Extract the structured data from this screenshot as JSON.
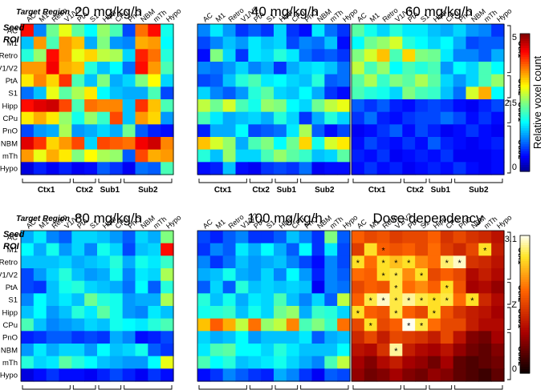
{
  "region_labels": [
    "AC",
    "M1",
    "Retro",
    "V1/V2",
    "PtA",
    "S1",
    "Hipp",
    "CPu",
    "PnO",
    "NBM",
    "mTh",
    "Hypo"
  ],
  "group_labels": [
    "Ctx1",
    "Ctx2",
    "Sub1",
    "Sub2"
  ],
  "target_label": "Target Region",
  "seed_label_1": "Seed",
  "seed_label_2": "ROI",
  "colorbar_top": {
    "ticks": [
      "5",
      "2.5",
      "0"
    ],
    "label": "Relative voxel count"
  },
  "colorbar_bottom": {
    "ticks": [
      "3.1",
      "Z",
      "0"
    ]
  },
  "chart_data": [
    {
      "type": "heatmap",
      "title": "20 mg/kg/h",
      "x": [
        "AC",
        "M1",
        "Retro",
        "V1/V2",
        "PtA",
        "S1",
        "Hipp",
        "CPu",
        "PnO",
        "NBM",
        "mTh",
        "Hypo"
      ],
      "y": [
        "AC",
        "M1",
        "Retro",
        "V1/V2",
        "PtA",
        "S1",
        "Hipp",
        "CPu",
        "PnO",
        "NBM",
        "mTh",
        "Hypo"
      ],
      "zlim": [
        0,
        5
      ],
      "values": [
        [
          4.3,
          1.2,
          2.4,
          3.0,
          2.3,
          1.8,
          2.6,
          2.2,
          0.9,
          3.8,
          4.3,
          1.9
        ],
        [
          1.5,
          3.6,
          2.2,
          3.6,
          3.4,
          1.4,
          2.5,
          1.3,
          1.2,
          3.5,
          3.6,
          1.8
        ],
        [
          2.0,
          2.6,
          4.3,
          3.6,
          3.0,
          3.3,
          2.8,
          2.7,
          1.6,
          4.2,
          3.8,
          2.0
        ],
        [
          3.6,
          3.6,
          4.4,
          3.5,
          3.4,
          2.0,
          1.5,
          1.8,
          1.1,
          4.3,
          3.6,
          2.2
        ],
        [
          3.2,
          3.7,
          3.3,
          4.1,
          2.2,
          1.5,
          2.5,
          1.4,
          1.6,
          2.5,
          3.1,
          1.6
        ],
        [
          1.1,
          1.5,
          3.0,
          2.3,
          2.7,
          3.2,
          1.8,
          1.5,
          1.4,
          1.4,
          2.2,
          0.9
        ],
        [
          4.3,
          4.5,
          4.6,
          4.0,
          2.2,
          3.8,
          3.7,
          3.7,
          1.5,
          4.1,
          3.4,
          2.2
        ],
        [
          3.2,
          3.5,
          3.2,
          2.6,
          1.9,
          2.6,
          2.1,
          4.0,
          1.5,
          3.6,
          3.3,
          1.3
        ],
        [
          0.9,
          1.3,
          1.4,
          2.7,
          1.3,
          1.4,
          1.6,
          1.4,
          2.4,
          1.0,
          0.7,
          0.6
        ],
        [
          4.5,
          4.1,
          3.3,
          3.6,
          4.0,
          1.6,
          4.0,
          3.9,
          3.8,
          4.4,
          4.6,
          3.7
        ],
        [
          3.6,
          3.0,
          3.5,
          3.2,
          2.5,
          3.1,
          2.7,
          2.6,
          1.0,
          4.0,
          3.5,
          3.6
        ],
        [
          0.4,
          0.7,
          0.5,
          0.7,
          0.5,
          0.6,
          1.0,
          0.8,
          0.5,
          1.1,
          1.0,
          2.2
        ]
      ]
    },
    {
      "type": "heatmap",
      "title": "40 mg/kg/h",
      "x": [
        "AC",
        "M1",
        "Retro",
        "V1/V2",
        "PtA",
        "S1",
        "Hipp",
        "CPu",
        "PnO",
        "NBM",
        "mTh",
        "Hypo"
      ],
      "y": [
        "AC",
        "M1",
        "Retro",
        "V1/V2",
        "PtA",
        "S1",
        "Hipp",
        "CPu",
        "PnO",
        "NBM",
        "mTh",
        "Hypo"
      ],
      "zlim": [
        0,
        5
      ],
      "values": [
        [
          1.2,
          1.7,
          1.3,
          0.8,
          1.0,
          0.8,
          1.6,
          0.8,
          0.6,
          1.7,
          1.1,
          0.8
        ],
        [
          0.9,
          1.2,
          1.5,
          1.3,
          1.7,
          1.5,
          1.6,
          0.9,
          1.2,
          1.1,
          1.5,
          0.6
        ],
        [
          0.6,
          2.5,
          1.6,
          0.8,
          1.7,
          1.6,
          2.0,
          1.7,
          1.1,
          0.9,
          1.0,
          0.8
        ],
        [
          1.2,
          1.1,
          1.3,
          1.6,
          1.2,
          1.4,
          0.8,
          1.4,
          1.6,
          1.7,
          1.5,
          1.1
        ],
        [
          0.9,
          1.0,
          1.5,
          2.0,
          2.2,
          1.7,
          1.8,
          1.6,
          1.5,
          2.0,
          1.0,
          1.1
        ],
        [
          1.6,
          1.2,
          1.0,
          1.3,
          2.0,
          2.3,
          1.6,
          1.5,
          1.8,
          1.4,
          0.8,
          0.6
        ],
        [
          2.8,
          2.4,
          2.9,
          2.2,
          1.9,
          2.6,
          2.5,
          1.8,
          1.6,
          2.4,
          2.8,
          3.0
        ],
        [
          2.2,
          1.7,
          1.4,
          1.5,
          1.6,
          1.4,
          2.0,
          1.6,
          0.8,
          1.4,
          2.0,
          1.6
        ],
        [
          0.7,
          1.4,
          1.4,
          1.8,
          0.9,
          1.0,
          1.1,
          1.7,
          2.7,
          1.0,
          0.6,
          0.9
        ],
        [
          3.4,
          2.9,
          2.6,
          1.4,
          2.2,
          2.5,
          1.8,
          2.4,
          3.3,
          1.9,
          2.9,
          3.2
        ],
        [
          2.0,
          1.5,
          2.6,
          1.6,
          1.6,
          2.2,
          2.6,
          2.3,
          2.1,
          1.5,
          1.6,
          2.3
        ],
        [
          0.6,
          0.7,
          1.5,
          0.6,
          0.5,
          0.8,
          0.9,
          0.8,
          1.1,
          0.5,
          0.6,
          0.6
        ]
      ]
    },
    {
      "type": "heatmap",
      "title": "60 mg/kg/h",
      "x": [
        "AC",
        "M1",
        "Retro",
        "V1/V2",
        "PtA",
        "S1",
        "Hipp",
        "CPu",
        "PnO",
        "NBM",
        "mTh",
        "Hypo"
      ],
      "y": [
        "AC",
        "M1",
        "Retro",
        "V1/V2",
        "PtA",
        "S1",
        "Hipp",
        "CPu",
        "PnO",
        "NBM",
        "mTh",
        "Hypo"
      ],
      "zlim": [
        0,
        5
      ],
      "values": [
        [
          2.3,
          1.9,
          1.6,
          2.0,
          1.7,
          1.7,
          1.5,
          1.4,
          1.6,
          1.3,
          1.2,
          0.8
        ],
        [
          1.8,
          2.4,
          2.6,
          2.9,
          2.0,
          1.8,
          1.6,
          1.8,
          1.4,
          0.9,
          1.0,
          1.0
        ],
        [
          2.5,
          2.9,
          3.4,
          2.2,
          3.3,
          2.5,
          2.4,
          1.7,
          1.2,
          1.2,
          1.0,
          1.4
        ],
        [
          2.8,
          2.2,
          2.6,
          1.8,
          2.2,
          2.0,
          2.2,
          1.3,
          1.8,
          1.6,
          2.2,
          1.8
        ],
        [
          2.3,
          2.7,
          2.1,
          2.5,
          2.3,
          2.7,
          2.3,
          1.6,
          1.3,
          1.6,
          2.2,
          2.6
        ],
        [
          2.2,
          2.0,
          1.9,
          1.6,
          2.5,
          2.2,
          2.1,
          1.5,
          1.1,
          2.9,
          3.5,
          1.8
        ],
        [
          1.0,
          0.8,
          1.0,
          0.7,
          0.6,
          0.8,
          0.9,
          0.8,
          0.6,
          0.5,
          0.7,
          0.9
        ],
        [
          0.8,
          1.1,
          0.7,
          0.6,
          0.8,
          0.9,
          0.9,
          1.1,
          0.9,
          0.6,
          0.8,
          0.6
        ],
        [
          0.5,
          0.6,
          0.8,
          1.0,
          0.6,
          0.9,
          0.7,
          0.5,
          0.6,
          0.8,
          0.6,
          0.5
        ],
        [
          0.6,
          0.9,
          0.7,
          0.6,
          0.8,
          0.6,
          1.0,
          0.7,
          0.6,
          0.5,
          0.6,
          0.7
        ],
        [
          0.7,
          0.6,
          0.8,
          0.5,
          0.6,
          0.7,
          0.6,
          0.8,
          0.5,
          0.5,
          0.5,
          0.6
        ],
        [
          0.6,
          0.8,
          0.6,
          0.7,
          0.5,
          0.6,
          0.7,
          0.6,
          0.8,
          0.6,
          0.5,
          0.6
        ]
      ]
    },
    {
      "type": "heatmap",
      "title": "80 mg/kg/h",
      "x": [
        "AC",
        "M1",
        "Retro",
        "V1/V2",
        "PtA",
        "S1",
        "Hipp",
        "CPu",
        "PnO",
        "NBM",
        "mTh",
        "Hypo"
      ],
      "y": [
        "AC",
        "M1",
        "Retro",
        "V1/V2",
        "PtA",
        "S1",
        "Hipp",
        "CPu",
        "PnO",
        "NBM",
        "mTh",
        "Hypo"
      ],
      "zlim": [
        0,
        5
      ],
      "values": [
        [
          1.4,
          1.7,
          1.2,
          1.0,
          1.6,
          1.6,
          1.5,
          1.3,
          1.0,
          1.6,
          1.4,
          2.5
        ],
        [
          1.8,
          1.4,
          1.9,
          1.3,
          1.6,
          1.2,
          1.9,
          1.6,
          0.9,
          1.5,
          1.6,
          4.3
        ],
        [
          1.5,
          1.5,
          1.5,
          1.6,
          1.4,
          1.5,
          1.6,
          2.0,
          1.4,
          1.9,
          1.7,
          2.1
        ],
        [
          0.9,
          1.3,
          1.6,
          2.0,
          1.5,
          1.3,
          1.4,
          1.9,
          1.2,
          1.7,
          1.6,
          2.7
        ],
        [
          0.9,
          0.8,
          1.5,
          1.9,
          2.0,
          1.6,
          1.5,
          1.4,
          1.1,
          1.8,
          1.0,
          2.0
        ],
        [
          1.2,
          1.8,
          1.5,
          1.7,
          1.5,
          2.4,
          2.0,
          1.9,
          1.3,
          1.4,
          1.4,
          2.7
        ],
        [
          1.5,
          1.8,
          1.3,
          1.5,
          2.0,
          1.7,
          2.3,
          1.9,
          1.3,
          1.2,
          1.7,
          1.5
        ],
        [
          2.2,
          1.5,
          1.2,
          1.3,
          1.4,
          1.6,
          1.5,
          1.9,
          1.8,
          1.7,
          2.0,
          2.2
        ],
        [
          0.7,
          0.8,
          1.0,
          1.0,
          0.8,
          0.9,
          0.8,
          1.4,
          1.2,
          0.6,
          0.7,
          0.9
        ],
        [
          1.3,
          1.7,
          1.4,
          1.6,
          1.6,
          1.3,
          1.8,
          1.5,
          1.6,
          1.9,
          1.0,
          0.8
        ],
        [
          2.0,
          1.6,
          1.7,
          2.3,
          2.0,
          1.8,
          1.5,
          1.4,
          1.3,
          1.3,
          1.8,
          3.0
        ],
        [
          0.4,
          0.6,
          0.8,
          0.6,
          0.6,
          0.5,
          0.7,
          0.9,
          0.7,
          0.5,
          0.8,
          0.6
        ]
      ]
    },
    {
      "type": "heatmap",
      "title": "100 mg/kg/h",
      "x": [
        "AC",
        "M1",
        "Retro",
        "V1/V2",
        "PtA",
        "S1",
        "Hipp",
        "CPu",
        "PnO",
        "NBM",
        "mTh",
        "Hypo"
      ],
      "y": [
        "AC",
        "M1",
        "Retro",
        "V1/V2",
        "PtA",
        "S1",
        "Hipp",
        "CPu",
        "PnO",
        "NBM",
        "mTh",
        "Hypo"
      ],
      "zlim": [
        0,
        5
      ],
      "values": [
        [
          0.9,
          0.7,
          1.0,
          1.2,
          0.8,
          0.8,
          1.0,
          1.5,
          1.2,
          0.8,
          2.5,
          1.0
        ],
        [
          0.8,
          1.2,
          1.0,
          1.7,
          1.4,
          1.8,
          1.4,
          1.0,
          1.8,
          0.8,
          1.7,
          0.9
        ],
        [
          1.2,
          0.8,
          1.1,
          1.5,
          1.3,
          1.4,
          1.5,
          1.2,
          0.9,
          0.6,
          1.2,
          0.9
        ],
        [
          1.4,
          1.5,
          1.9,
          1.4,
          1.3,
          1.6,
          1.2,
          1.8,
          1.3,
          0.7,
          1.2,
          1.0
        ],
        [
          1.0,
          1.6,
          1.0,
          2.0,
          1.5,
          1.6,
          1.5,
          1.6,
          1.5,
          0.5,
          1.2,
          1.1
        ],
        [
          2.0,
          1.5,
          1.9,
          1.4,
          1.7,
          1.6,
          2.2,
          1.5,
          1.2,
          1.6,
          1.0,
          2.8
        ],
        [
          1.9,
          2.0,
          2.1,
          1.5,
          1.9,
          1.6,
          2.4,
          2.6,
          1.4,
          2.1,
          2.0,
          1.6
        ],
        [
          3.4,
          3.9,
          3.5,
          2.8,
          3.8,
          2.6,
          2.8,
          3.7,
          2.2,
          2.5,
          2.1,
          3.8
        ],
        [
          1.6,
          1.4,
          1.5,
          1.8,
          1.3,
          1.5,
          1.5,
          1.5,
          1.7,
          1.0,
          1.4,
          1.5
        ],
        [
          1.7,
          2.2,
          2.3,
          1.8,
          1.8,
          1.6,
          2.0,
          1.7,
          1.5,
          1.5,
          1.5,
          1.8
        ],
        [
          2.2,
          1.8,
          2.0,
          1.5,
          1.6,
          1.7,
          1.9,
          1.6,
          1.4,
          1.2,
          2.2,
          2.8
        ],
        [
          0.6,
          0.8,
          1.2,
          1.0,
          0.8,
          0.7,
          1.4,
          1.2,
          0.8,
          0.5,
          1.0,
          0.9
        ]
      ]
    },
    {
      "type": "heatmap",
      "title": "Dose dependency",
      "x": [
        "AC",
        "M1",
        "Retro",
        "V1/V2",
        "PtA",
        "S1",
        "Hipp",
        "CPu",
        "PnO",
        "NBM",
        "mTh",
        "Hypo"
      ],
      "y": [
        "AC",
        "M1",
        "Retro",
        "V1/V2",
        "PtA",
        "S1",
        "Hipp",
        "CPu",
        "PnO",
        "NBM",
        "mTh",
        "Hypo"
      ],
      "zlim": [
        0,
        3.1
      ],
      "values": [
        [
          1.8,
          1.6,
          1.7,
          1.5,
          1.6,
          1.6,
          1.8,
          1.4,
          1.6,
          1.4,
          1.3,
          1.1
        ],
        [
          1.5,
          2.6,
          1.8,
          1.7,
          1.8,
          1.6,
          1.9,
          1.5,
          1.3,
          1.6,
          2.6,
          1.2
        ],
        [
          2.6,
          1.9,
          2.6,
          2.4,
          2.6,
          2.1,
          1.9,
          2.8,
          3.0,
          1.4,
          1.3,
          1.1
        ],
        [
          1.9,
          1.8,
          2.6,
          2.7,
          2.1,
          2.6,
          1.6,
          1.8,
          1.6,
          1.0,
          1.2,
          1.0
        ],
        [
          1.6,
          1.8,
          1.7,
          2.7,
          1.9,
          2.1,
          1.8,
          2.6,
          1.7,
          0.9,
          1.0,
          0.8
        ],
        [
          1.8,
          2.7,
          3.0,
          2.7,
          2.9,
          2.7,
          2.6,
          2.7,
          1.9,
          2.6,
          1.3,
          1.0
        ],
        [
          2.6,
          1.8,
          1.7,
          2.7,
          1.8,
          1.6,
          2.6,
          1.7,
          1.4,
          1.2,
          1.1,
          0.9
        ],
        [
          1.6,
          2.6,
          1.6,
          1.8,
          3.1,
          2.7,
          1.9,
          1.6,
          1.6,
          1.2,
          1.0,
          1.0
        ],
        [
          1.3,
          1.6,
          1.2,
          1.6,
          1.5,
          1.4,
          1.2,
          1.6,
          1.1,
          0.7,
          0.6,
          0.9
        ],
        [
          1.1,
          1.0,
          1.4,
          2.9,
          1.2,
          1.0,
          0.9,
          1.1,
          0.8,
          0.6,
          0.5,
          0.7
        ],
        [
          0.9,
          0.7,
          1.0,
          1.2,
          0.9,
          0.8,
          0.6,
          0.9,
          0.5,
          0.4,
          0.5,
          0.6
        ],
        [
          0.8,
          0.6,
          0.7,
          0.9,
          0.7,
          0.6,
          0.8,
          0.7,
          0.5,
          0.4,
          0.3,
          0.5
        ]
      ],
      "significant_marker": "*",
      "significant_cells": [
        [
          1,
          2
        ],
        [
          1,
          10
        ],
        [
          2,
          0
        ],
        [
          2,
          2
        ],
        [
          2,
          3
        ],
        [
          2,
          4
        ],
        [
          2,
          7
        ],
        [
          2,
          8
        ],
        [
          3,
          2
        ],
        [
          3,
          3
        ],
        [
          3,
          5
        ],
        [
          4,
          3
        ],
        [
          4,
          7
        ],
        [
          5,
          1
        ],
        [
          5,
          2
        ],
        [
          5,
          3
        ],
        [
          5,
          4
        ],
        [
          5,
          5
        ],
        [
          5,
          6
        ],
        [
          5,
          7
        ],
        [
          5,
          9
        ],
        [
          6,
          0
        ],
        [
          6,
          3
        ],
        [
          6,
          6
        ],
        [
          7,
          1
        ],
        [
          7,
          4
        ],
        [
          7,
          5
        ],
        [
          9,
          3
        ]
      ]
    }
  ]
}
